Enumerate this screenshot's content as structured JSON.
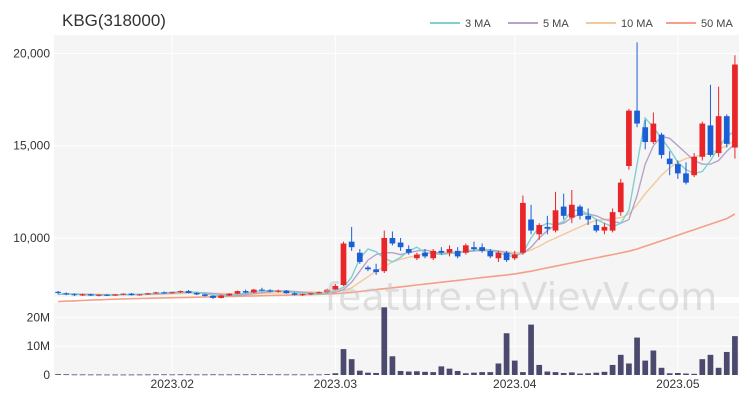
{
  "title": "KBG(318000)",
  "watermark": "feature.enVievV.com",
  "colors": {
    "up": "#e8262a",
    "down": "#1a5fd6",
    "volume": "#4b4a6e",
    "ma3": "#7fd1cf",
    "ma5": "#b7a3c9",
    "ma10": "#f4c89a",
    "ma50": "#f4a089",
    "panel_bg": "#f5f5f5"
  },
  "chart_data": [
    {
      "type": "candlestick",
      "ylim": [
        6800,
        21000
      ],
      "y_ticks": [
        10000,
        15000,
        20000
      ],
      "y_tick_labels": [
        "10,000",
        "15,000",
        "20,000"
      ],
      "x_ticks": [
        {
          "index": 14,
          "label": "2023.02"
        },
        {
          "index": 34,
          "label": "2023.03"
        },
        {
          "index": 56,
          "label": "2023.04"
        },
        {
          "index": 76,
          "label": "2023.05"
        }
      ],
      "legend": {
        "position": "top-right",
        "items": [
          {
            "label": "3 MA",
            "color_key": "ma3"
          },
          {
            "label": "5 MA",
            "color_key": "ma5"
          },
          {
            "label": "10 MA",
            "color_key": "ma10"
          },
          {
            "label": "50 MA",
            "color_key": "ma50"
          }
        ]
      },
      "ohlc": [
        [
          7080,
          7130,
          6950,
          7020
        ],
        [
          7000,
          7050,
          6900,
          6950
        ],
        [
          6950,
          7000,
          6850,
          6900
        ],
        [
          6880,
          6980,
          6860,
          6950
        ],
        [
          6950,
          6980,
          6850,
          6880
        ],
        [
          6880,
          6950,
          6830,
          6920
        ],
        [
          6920,
          6960,
          6850,
          6870
        ],
        [
          6880,
          6960,
          6860,
          6940
        ],
        [
          6940,
          7000,
          6900,
          6980
        ],
        [
          6980,
          7020,
          6880,
          6900
        ],
        [
          6900,
          6960,
          6870,
          6940
        ],
        [
          6940,
          7020,
          6920,
          7000
        ],
        [
          7000,
          7080,
          6960,
          7050
        ],
        [
          7050,
          7100,
          6980,
          7010
        ],
        [
          7010,
          7080,
          7000,
          7060
        ],
        [
          7060,
          7150,
          7020,
          7120
        ],
        [
          7120,
          7180,
          7000,
          7020
        ],
        [
          7020,
          7060,
          6900,
          6940
        ],
        [
          6940,
          6980,
          6820,
          6860
        ],
        [
          6860,
          6900,
          6700,
          6750
        ],
        [
          6750,
          6920,
          6720,
          6880
        ],
        [
          6880,
          7000,
          6850,
          6980
        ],
        [
          6980,
          7150,
          6950,
          7120
        ],
        [
          7120,
          7200,
          7000,
          7040
        ],
        [
          7040,
          7240,
          7000,
          7200
        ],
        [
          7200,
          7300,
          7100,
          7150
        ],
        [
          7150,
          7220,
          7050,
          7100
        ],
        [
          7100,
          7200,
          7040,
          7140
        ],
        [
          7140,
          7180,
          6980,
          7000
        ],
        [
          7000,
          7050,
          6880,
          6920
        ],
        [
          6920,
          6980,
          6850,
          6950
        ],
        [
          6950,
          7020,
          6900,
          7000
        ],
        [
          7000,
          7100,
          6980,
          7060
        ],
        [
          7060,
          7250,
          7040,
          7200
        ],
        [
          7200,
          7500,
          7150,
          7400
        ],
        [
          7450,
          9800,
          7400,
          9700
        ],
        [
          9800,
          10600,
          9300,
          9500
        ],
        [
          9200,
          9400,
          8600,
          8700
        ],
        [
          8400,
          8500,
          8200,
          8300
        ],
        [
          8300,
          8600,
          8000,
          8150
        ],
        [
          8200,
          10400,
          8100,
          10000
        ],
        [
          10000,
          10350,
          9600,
          9700
        ],
        [
          9750,
          10000,
          9300,
          9500
        ],
        [
          9400,
          9600,
          9100,
          9200
        ],
        [
          8900,
          9200,
          8800,
          9100
        ],
        [
          9200,
          9400,
          8900,
          9000
        ],
        [
          8900,
          9400,
          8800,
          9300
        ],
        [
          9300,
          9500,
          9100,
          9200
        ],
        [
          9200,
          9600,
          9000,
          9400
        ],
        [
          9300,
          9500,
          8900,
          9000
        ],
        [
          9200,
          9700,
          9100,
          9600
        ],
        [
          9500,
          9800,
          9300,
          9400
        ],
        [
          9500,
          9700,
          9200,
          9300
        ],
        [
          9300,
          9400,
          8900,
          9000
        ],
        [
          8900,
          9300,
          8700,
          9200
        ],
        [
          9200,
          9300,
          8700,
          8800
        ],
        [
          8900,
          9300,
          8800,
          9100
        ],
        [
          9200,
          12300,
          9100,
          11900
        ],
        [
          11000,
          11800,
          10200,
          10400
        ],
        [
          10200,
          10800,
          9900,
          10700
        ],
        [
          10600,
          11200,
          10200,
          10500
        ],
        [
          10400,
          12500,
          10300,
          11500
        ],
        [
          11700,
          12400,
          11000,
          11200
        ],
        [
          11100,
          12600,
          10800,
          11800
        ],
        [
          11700,
          11800,
          11000,
          11200
        ],
        [
          11200,
          11600,
          10700,
          11000
        ],
        [
          10700,
          11000,
          10300,
          10400
        ],
        [
          10400,
          10800,
          10200,
          10600
        ],
        [
          10400,
          11600,
          10300,
          11400
        ],
        [
          11400,
          13200,
          11200,
          13000
        ],
        [
          13900,
          17000,
          13700,
          16900
        ],
        [
          16900,
          20600,
          16000,
          16200
        ],
        [
          16000,
          16400,
          14800,
          15200
        ],
        [
          15200,
          16800,
          15100,
          16200
        ],
        [
          15600,
          15700,
          14300,
          14500
        ],
        [
          14300,
          14700,
          13400,
          14000
        ],
        [
          14000,
          14200,
          13200,
          13500
        ],
        [
          13500,
          14100,
          12900,
          13000
        ],
        [
          13400,
          14600,
          13300,
          14400
        ],
        [
          14400,
          16300,
          14200,
          16200
        ],
        [
          16100,
          18300,
          14400,
          14500
        ],
        [
          14600,
          18200,
          14400,
          16600
        ],
        [
          16600,
          16700,
          14900,
          15100
        ],
        [
          14900,
          19900,
          14300,
          19400
        ]
      ],
      "ma": {
        "ma3": [
          6950,
          6970,
          6950,
          6920,
          6910,
          6900,
          6900,
          6910,
          6930,
          6940,
          6950,
          6960,
          6990,
          7020,
          7060,
          7060,
          7080,
          7050,
          6980,
          6900,
          6860,
          6870,
          6950,
          7000,
          7090,
          7130,
          7150,
          7130,
          7090,
          7050,
          6990,
          6960,
          6960,
          7040,
          7150,
          7320,
          7880,
          8900,
          9400,
          9250,
          8900,
          8700,
          8950,
          9300,
          9500,
          9200,
          9150,
          9100,
          9150,
          9200,
          9300,
          9350,
          9400,
          9350,
          9200,
          9050,
          9000,
          9200,
          10000,
          10600,
          10800,
          10700,
          10900,
          11500,
          11500,
          11300,
          11000,
          10800,
          10600,
          10800,
          11500,
          14000,
          16500,
          16000,
          15400,
          14800,
          14100,
          13700,
          13500,
          13600,
          14200,
          14900,
          15500,
          15800
        ],
        "ma5": [
          6950,
          6960,
          6960,
          6950,
          6940,
          6930,
          6920,
          6910,
          6920,
          6930,
          6940,
          6950,
          6970,
          6990,
          7010,
          7040,
          7060,
          7050,
          7030,
          6990,
          6940,
          6900,
          6890,
          6920,
          6980,
          7040,
          7100,
          7130,
          7130,
          7100,
          7060,
          7020,
          6990,
          7000,
          7060,
          7200,
          7600,
          8200,
          8800,
          9100,
          9200,
          9200,
          9100,
          9200,
          9300,
          9350,
          9250,
          9150,
          9150,
          9200,
          9250,
          9300,
          9350,
          9350,
          9300,
          9200,
          9100,
          9150,
          9500,
          10000,
          10400,
          10700,
          10800,
          11100,
          11300,
          11300,
          11200,
          11000,
          10900,
          10800,
          11000,
          12300,
          14000,
          15000,
          15500,
          15400,
          15000,
          14600,
          14200,
          14000,
          14000,
          14200,
          14700,
          15100
        ],
        "ma10": [
          6940,
          6950,
          6950,
          6950,
          6945,
          6940,
          6935,
          6930,
          6925,
          6925,
          6930,
          6935,
          6940,
          6955,
          6970,
          6990,
          7005,
          7010,
          7010,
          7000,
          6990,
          6980,
          6970,
          6965,
          6975,
          6990,
          7010,
          7030,
          7045,
          7060,
          7070,
          7070,
          7060,
          7060,
          7090,
          7140,
          7300,
          7600,
          7900,
          8200,
          8450,
          8700,
          8850,
          8950,
          9050,
          9150,
          9200,
          9200,
          9220,
          9250,
          9280,
          9300,
          9300,
          9300,
          9280,
          9250,
          9200,
          9230,
          9350,
          9550,
          9800,
          10000,
          10200,
          10400,
          10600,
          10800,
          10950,
          11000,
          11050,
          11100,
          11300,
          11800,
          12400,
          12900,
          13400,
          13800,
          14100,
          14300,
          14400,
          14500,
          14600,
          14800,
          15000,
          15300
        ],
        "ma50": [
          6550,
          6570,
          6590,
          6610,
          6630,
          6650,
          6665,
          6680,
          6695,
          6710,
          6720,
          6730,
          6740,
          6750,
          6760,
          6770,
          6780,
          6790,
          6800,
          6810,
          6820,
          6830,
          6840,
          6850,
          6860,
          6870,
          6880,
          6890,
          6900,
          6910,
          6920,
          6930,
          6945,
          6960,
          6980,
          7010,
          7050,
          7100,
          7150,
          7200,
          7250,
          7300,
          7350,
          7400,
          7450,
          7500,
          7550,
          7600,
          7650,
          7700,
          7750,
          7800,
          7850,
          7900,
          7950,
          8000,
          8050,
          8120,
          8200,
          8290,
          8380,
          8470,
          8560,
          8650,
          8740,
          8830,
          8920,
          9010,
          9100,
          9190,
          9280,
          9400,
          9550,
          9700,
          9850,
          10000,
          10150,
          10300,
          10450,
          10600,
          10750,
          10900,
          11050,
          11300
        ]
      }
    },
    {
      "type": "bar",
      "name": "volume",
      "ylim": [
        0,
        25000000
      ],
      "y_ticks": [
        0,
        10000000,
        20000000
      ],
      "y_tick_labels": [
        "0",
        "10M",
        "20M"
      ],
      "values": [
        300000,
        250000,
        200000,
        200000,
        180000,
        180000,
        160000,
        160000,
        160000,
        170000,
        180000,
        200000,
        220000,
        220000,
        200000,
        220000,
        220000,
        200000,
        200000,
        220000,
        200000,
        200000,
        220000,
        220000,
        240000,
        250000,
        220000,
        220000,
        200000,
        200000,
        200000,
        200000,
        200000,
        300000,
        600000,
        9000000,
        5500000,
        1500000,
        800000,
        700000,
        23500000,
        6500000,
        1400000,
        1200000,
        1300000,
        1100000,
        1000000,
        3000000,
        2200000,
        1400000,
        600000,
        800000,
        1000000,
        1000000,
        4000000,
        14500000,
        5000000,
        1000000,
        17500000,
        3500000,
        1200000,
        1000000,
        700000,
        900000,
        500000,
        600000,
        800000,
        1100000,
        3500000,
        7000000,
        4000000,
        13000000,
        5000000,
        8500000,
        2500000,
        600000,
        700000,
        500000,
        400000,
        5500000,
        7000000,
        2500000,
        8000000,
        13500000
      ]
    }
  ]
}
